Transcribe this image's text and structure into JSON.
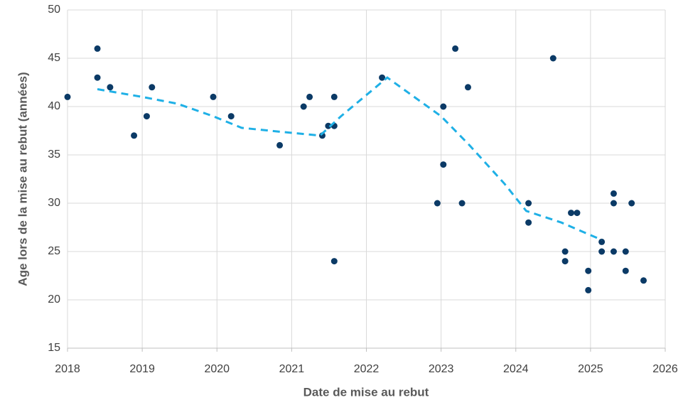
{
  "chart_data": {
    "type": "scatter",
    "xlabel": "Date de mise au rebut",
    "ylabel": "Age lors de la mise au rebut (années)",
    "xlim": [
      2018,
      2026
    ],
    "xticks": [
      2018,
      2019,
      2020,
      2021,
      2022,
      2023,
      2024,
      2025,
      2026
    ],
    "ylim": [
      15,
      50
    ],
    "yticks": [
      15,
      20,
      25,
      30,
      35,
      40,
      45,
      50
    ],
    "grid": true,
    "series": [
      {
        "mode": "markers",
        "color": "#0b3a66",
        "x": [
          2018.0,
          2018.4,
          2018.4,
          2018.57,
          2018.89,
          2019.06,
          2019.13,
          2019.95,
          2020.19,
          2020.84,
          2021.16,
          2021.24,
          2021.41,
          2021.49,
          2021.57,
          2021.57,
          2021.57,
          2022.21,
          2022.95,
          2023.03,
          2023.03,
          2023.19,
          2023.28,
          2023.36,
          2024.17,
          2024.17,
          2024.5,
          2024.66,
          2024.66,
          2024.74,
          2024.82,
          2024.97,
          2024.97,
          2025.15,
          2025.15,
          2025.31,
          2025.31,
          2025.31,
          2025.47,
          2025.47,
          2025.55,
          2025.71
        ],
        "values": [
          41,
          46,
          43,
          42,
          37,
          39,
          42,
          41,
          39,
          36,
          40,
          41,
          37,
          38,
          41,
          38,
          24,
          43,
          30,
          40,
          34,
          46,
          30,
          42,
          30,
          28,
          45,
          25,
          24,
          29,
          29,
          23,
          21,
          26,
          25,
          31,
          30,
          25,
          25,
          23,
          30,
          22
        ]
      },
      {
        "mode": "dashed-line",
        "color": "#1fb0e6",
        "x": [
          2018.4,
          2019.0,
          2019.47,
          2019.95,
          2020.33,
          2020.84,
          2021.38,
          2021.66,
          2022.28,
          2023.0,
          2023.38,
          2023.85,
          2024.14,
          2024.61,
          2025.15
        ],
        "values": [
          41.8,
          41,
          40.3,
          39,
          37.8,
          37.4,
          37,
          39,
          43,
          39,
          36,
          32,
          29.2,
          28,
          26.2
        ]
      }
    ]
  }
}
